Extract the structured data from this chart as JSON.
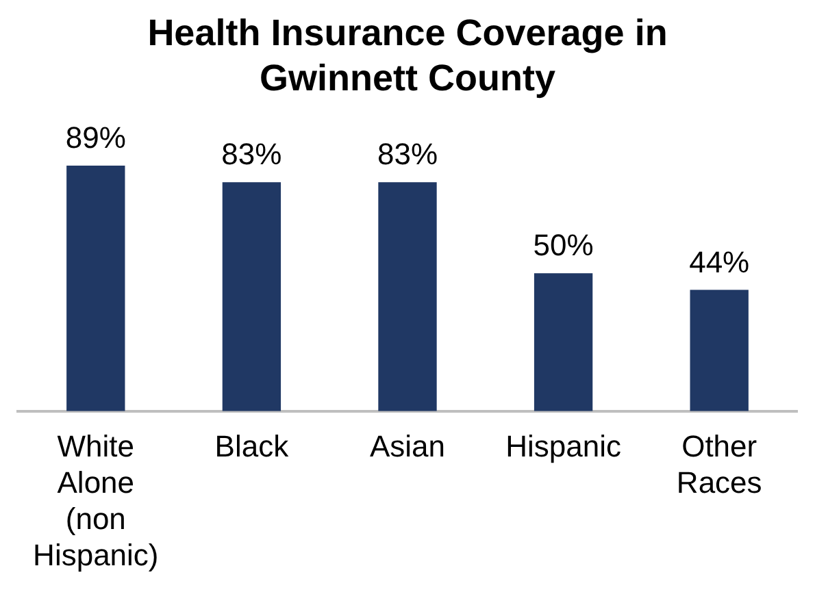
{
  "chart_data": {
    "type": "bar",
    "title": "Health Insurance Coverage in Gwinnett County",
    "categories": [
      "White Alone (non Hispanic)",
      "Black",
      "Asian",
      "Hispanic",
      "Other Races"
    ],
    "values": [
      89,
      83,
      83,
      50,
      44
    ],
    "value_labels": [
      "89%",
      "83%",
      "83%",
      "50%",
      "44%"
    ],
    "color": "#203864",
    "grid": false,
    "legend": false
  }
}
